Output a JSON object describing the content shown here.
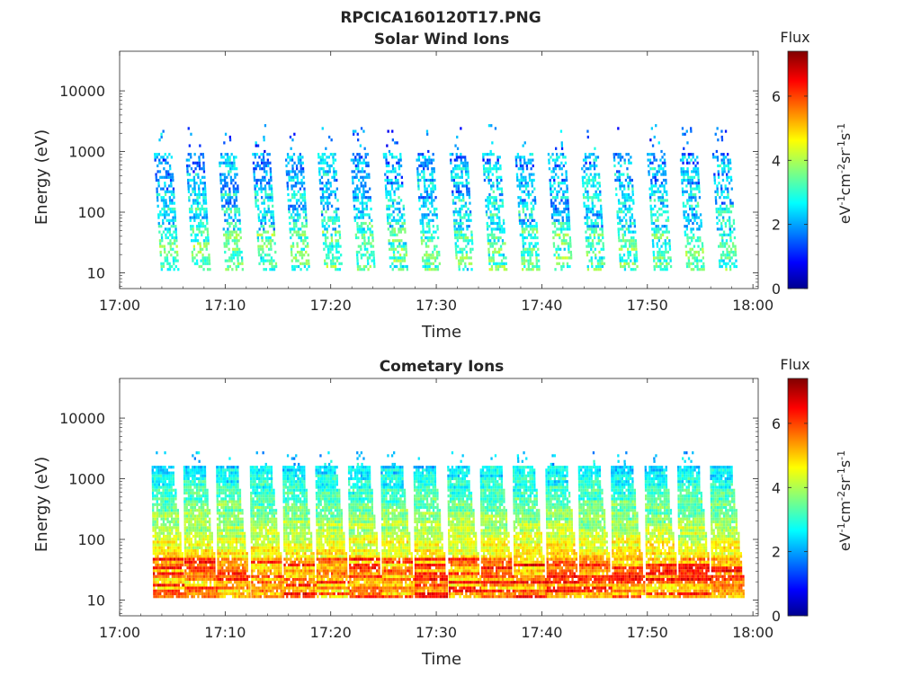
{
  "figure": {
    "title": "RPCICA160120T17.PNG"
  },
  "chart_data": [
    {
      "type": "heatmap",
      "title": "Solar Wind Ions",
      "xlabel": "Time",
      "ylabel": "Energy (eV)",
      "x_ticks": [
        "17:00",
        "17:10",
        "17:20",
        "17:30",
        "17:40",
        "17:50",
        "18:00"
      ],
      "x_range_minutes": [
        0,
        60.5
      ],
      "y_scale": "log",
      "y_ticks": [
        10,
        100,
        1000,
        10000
      ],
      "y_tick_labels": [
        "10",
        "100",
        "1000",
        "10000"
      ],
      "y_range": [
        5.5,
        45000
      ],
      "grid": false,
      "colorbar": {
        "title": "Flux",
        "label": "eV-1cm-2sr-1s-1",
        "label_parts": [
          "eV",
          "-1",
          "cm",
          "-2",
          "sr",
          "-1",
          "s",
          "-1"
        ],
        "range": [
          0,
          7.4
        ],
        "ticks": [
          "0",
          "2",
          "4",
          "6"
        ],
        "colormap": "jet"
      },
      "profile": "solar_wind",
      "sweep_centers_minutes": [
        4.6,
        7.6,
        10.7,
        13.9,
        17.0,
        20.1,
        23.2,
        26.3,
        29.4,
        32.6,
        35.7,
        38.8,
        41.9,
        45.0,
        48.1,
        51.3,
        54.4,
        57.5
      ]
    },
    {
      "type": "heatmap",
      "title": "Cometary Ions",
      "xlabel": "Time",
      "ylabel": "Energy (eV)",
      "x_ticks": [
        "17:00",
        "17:10",
        "17:20",
        "17:30",
        "17:40",
        "17:50",
        "18:00"
      ],
      "x_range_minutes": [
        0,
        60.5
      ],
      "y_scale": "log",
      "y_ticks": [
        10,
        100,
        1000,
        10000
      ],
      "y_tick_labels": [
        "10",
        "100",
        "1000",
        "10000"
      ],
      "y_range": [
        5.5,
        45000
      ],
      "grid": false,
      "colorbar": {
        "title": "Flux",
        "label": "eV-1cm-2sr-1s-1",
        "label_parts": [
          "eV",
          "-1",
          "cm",
          "-2",
          "sr",
          "-1",
          "s",
          "-1"
        ],
        "range": [
          0,
          7.4
        ],
        "ticks": [
          "0",
          "2",
          "4",
          "6"
        ],
        "colormap": "jet"
      },
      "profile": "cometary",
      "sweep_centers_minutes": [
        4.6,
        7.6,
        10.7,
        13.9,
        17.0,
        20.1,
        23.2,
        26.3,
        29.4,
        32.6,
        35.7,
        38.8,
        41.9,
        45.0,
        48.1,
        51.3,
        54.4,
        57.5
      ]
    }
  ]
}
